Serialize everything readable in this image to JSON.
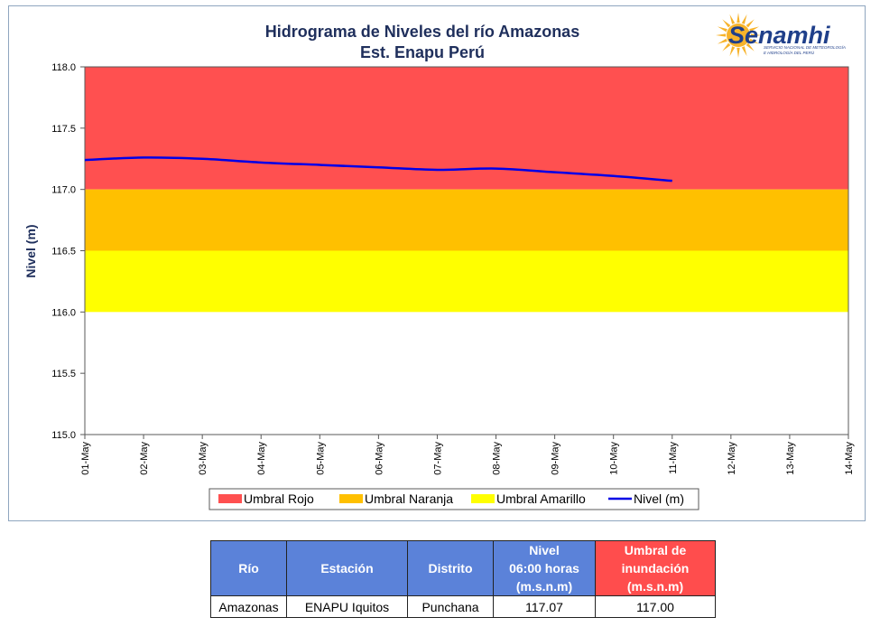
{
  "chart_data": {
    "type": "line",
    "title": "Hidrograma de Niveles del río Amazonas",
    "subtitle": "Est. Enapu Perú",
    "ylabel": "Nivel (m)",
    "xlabel": "",
    "ylim": [
      115.0,
      118.0
    ],
    "y_ticks": [
      "115.0",
      "115.5",
      "116.0",
      "116.5",
      "117.0",
      "117.5",
      "118.0"
    ],
    "categories": [
      "01-May",
      "02-May",
      "03-May",
      "04-May",
      "05-May",
      "06-May",
      "07-May",
      "08-May",
      "09-May",
      "10-May",
      "11-May",
      "12-May",
      "13-May",
      "14-May"
    ],
    "bands": [
      {
        "name": "Umbral Rojo",
        "from": 117.0,
        "to": 118.0,
        "color": "#ff5050"
      },
      {
        "name": "Umbral Naranja",
        "from": 116.5,
        "to": 117.0,
        "color": "#ffc000"
      },
      {
        "name": "Umbral Amarillo",
        "from": 116.0,
        "to": 116.5,
        "color": "#ffff00"
      }
    ],
    "series": [
      {
        "name": "Nivel (m)",
        "color": "#0000e6",
        "values": [
          117.24,
          117.26,
          117.25,
          117.22,
          117.2,
          117.18,
          117.16,
          117.17,
          117.14,
          117.11,
          117.07,
          null,
          null,
          null
        ]
      }
    ],
    "grid": false,
    "legend_position": "bottom"
  },
  "logo": {
    "name": "Senamhi",
    "subtitle_line1": "SERVICIO NACIONAL DE METEOROLOGÍA",
    "subtitle_line2": "E HIDROLOGÍA DEL PERÚ",
    "icon": "sun-logo-icon"
  },
  "table": {
    "headers": [
      "Río",
      "Estación",
      "Distrito",
      "Nivel\n06:00 horas\n(m.s.n.m)",
      "Umbral de\ninundación\n(m.s.n.m)"
    ],
    "row": [
      "Amazonas",
      "ENAPU Iquitos",
      "Punchana",
      "117.07",
      "117.00"
    ],
    "header_colors": [
      "#5b82d9",
      "#5b82d9",
      "#5b82d9",
      "#5b82d9",
      "#ff4d4d"
    ]
  }
}
